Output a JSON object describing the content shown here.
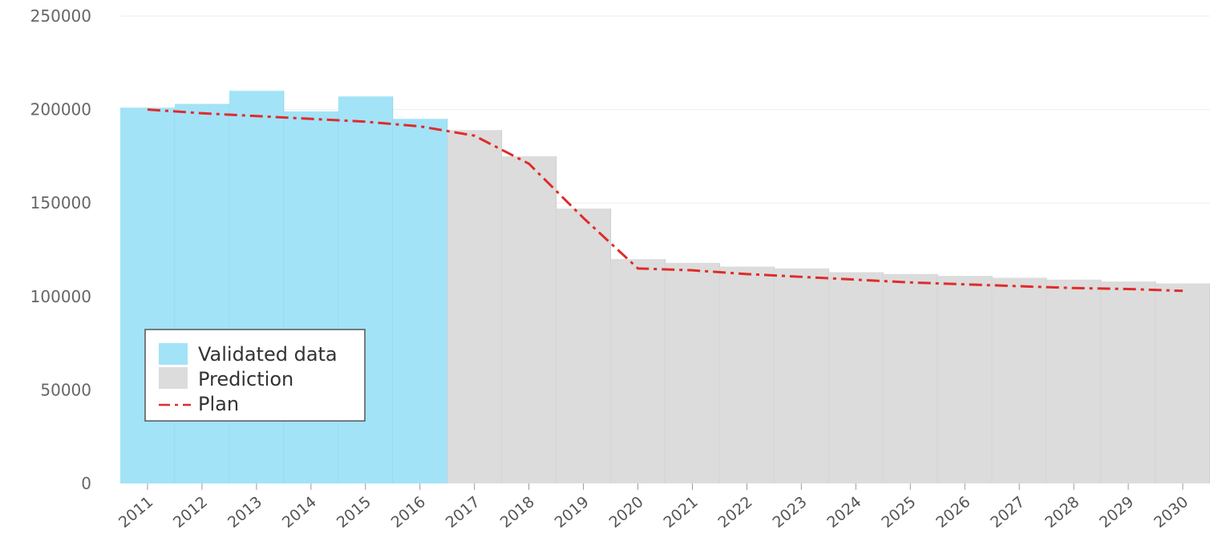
{
  "chart_data": {
    "type": "bar",
    "categories": [
      "2011",
      "2012",
      "2013",
      "2014",
      "2015",
      "2016",
      "2017",
      "2018",
      "2019",
      "2020",
      "2021",
      "2022",
      "2023",
      "2024",
      "2025",
      "2026",
      "2027",
      "2028",
      "2029",
      "2030"
    ],
    "series": [
      {
        "name": "Validated data",
        "kind": "bar",
        "color": "#a3e3f7",
        "values": [
          201000,
          203000,
          210000,
          199000,
          207000,
          195000,
          null,
          null,
          null,
          null,
          null,
          null,
          null,
          null,
          null,
          null,
          null,
          null,
          null,
          null
        ]
      },
      {
        "name": "Prediction",
        "kind": "bar",
        "color": "#dcdcdc",
        "values": [
          null,
          null,
          null,
          null,
          null,
          null,
          189000,
          175000,
          147000,
          120000,
          118000,
          116000,
          115000,
          113000,
          112000,
          111000,
          110000,
          109000,
          108000,
          107000
        ]
      },
      {
        "name": "Plan",
        "kind": "line",
        "color": "#e02b2b",
        "dash": "dash-dot",
        "values": [
          200000,
          198000,
          196500,
          195000,
          193500,
          191000,
          186000,
          171000,
          142000,
          115000,
          114000,
          112000,
          110500,
          109000,
          107500,
          106500,
          105500,
          104500,
          104000,
          103000
        ]
      }
    ],
    "title": "",
    "xlabel": "",
    "ylabel": "",
    "ylim": [
      0,
      250000
    ],
    "yticks": [
      "0",
      "50000",
      "100000",
      "150000",
      "200000",
      "250000"
    ],
    "grid": "horizontal",
    "legend_position": "bottom-left"
  }
}
